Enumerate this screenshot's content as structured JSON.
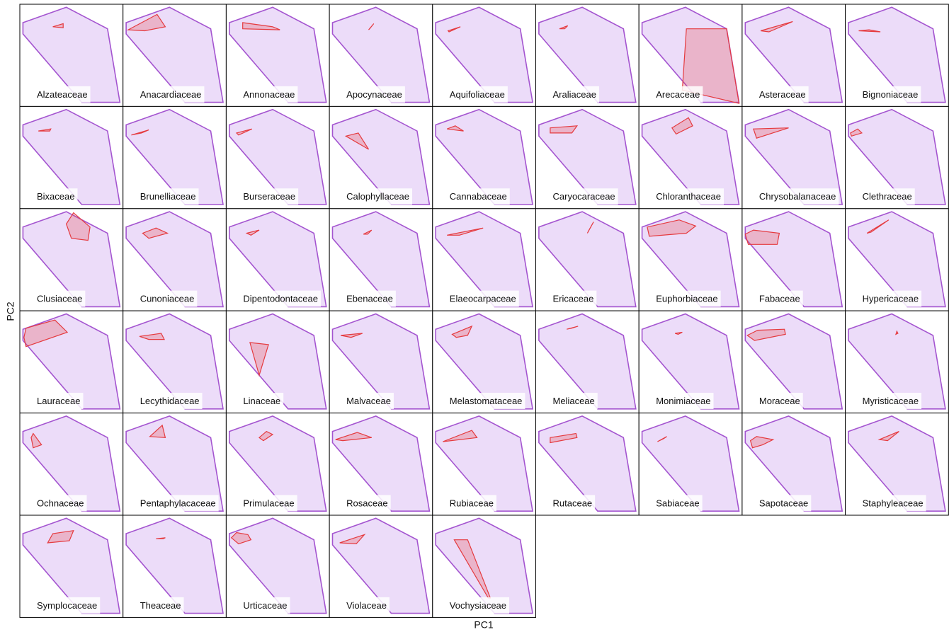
{
  "chart_data": {
    "type": "polygon",
    "xlabel": "PC1",
    "ylabel": "PC2",
    "xlim": [
      0,
      1
    ],
    "ylim": [
      0,
      1
    ],
    "envelope": {
      "color": "#a455d0",
      "x": [
        0.03,
        0.45,
        0.85,
        0.97,
        0.6,
        0.03
      ],
      "y": [
        0.82,
        0.97,
        0.76,
        0.04,
        0.04,
        0.71
      ]
    },
    "color": "#e53a3f",
    "panels": [
      {
        "name": "Alzateaceae",
        "x": [
          0.32,
          0.42,
          0.42
        ],
        "y": [
          0.78,
          0.81,
          0.77
        ]
      },
      {
        "name": "Anacardiaceae",
        "x": [
          0.05,
          0.33,
          0.41,
          0.21
        ],
        "y": [
          0.75,
          0.9,
          0.78,
          0.74
        ]
      },
      {
        "name": "Annonaceae",
        "x": [
          0.16,
          0.16,
          0.52,
          0.45
        ],
        "y": [
          0.82,
          0.76,
          0.75,
          0.78
        ]
      },
      {
        "name": "Apocynaceae",
        "x": [
          0.38,
          0.43,
          0.39
        ],
        "y": [
          0.75,
          0.81,
          0.76
        ]
      },
      {
        "name": "Aquifoliaceae",
        "x": [
          0.15,
          0.27,
          0.16
        ],
        "y": [
          0.74,
          0.78,
          0.73
        ]
      },
      {
        "name": "Araliaceae",
        "x": [
          0.23,
          0.31,
          0.28
        ],
        "y": [
          0.76,
          0.79,
          0.76
        ]
      },
      {
        "name": "Arecaceae",
        "x": [
          0.46,
          0.85,
          0.97,
          0.42
        ],
        "y": [
          0.76,
          0.76,
          0.03,
          0.16
        ]
      },
      {
        "name": "Asteraceae",
        "x": [
          0.18,
          0.49,
          0.26
        ],
        "y": [
          0.74,
          0.83,
          0.73
        ]
      },
      {
        "name": "Bignoniaceae",
        "x": [
          0.13,
          0.34,
          0.23
        ],
        "y": [
          0.74,
          0.73,
          0.75
        ]
      },
      {
        "name": "Bixaceae",
        "x": [
          0.18,
          0.3,
          0.29
        ],
        "y": [
          0.76,
          0.78,
          0.76
        ]
      },
      {
        "name": "Brunelliaceae",
        "x": [
          0.08,
          0.25,
          0.18
        ],
        "y": [
          0.72,
          0.77,
          0.74
        ]
      },
      {
        "name": "Burseraceae",
        "x": [
          0.1,
          0.25,
          0.12
        ],
        "y": [
          0.74,
          0.78,
          0.72
        ]
      },
      {
        "name": "Calophyllaceae",
        "x": [
          0.16,
          0.28,
          0.38
        ],
        "y": [
          0.71,
          0.74,
          0.58
        ]
      },
      {
        "name": "Cannabaceae",
        "x": [
          0.14,
          0.22,
          0.3
        ],
        "y": [
          0.78,
          0.81,
          0.76
        ]
      },
      {
        "name": "Caryocaraceae",
        "x": [
          0.14,
          0.4,
          0.35,
          0.14
        ],
        "y": [
          0.79,
          0.81,
          0.74,
          0.74
        ]
      },
      {
        "name": "Chloranthaceae",
        "x": [
          0.32,
          0.48,
          0.52,
          0.36
        ],
        "y": [
          0.79,
          0.89,
          0.81,
          0.73
        ]
      },
      {
        "name": "Chrysobalanaceae",
        "x": [
          0.11,
          0.45,
          0.14
        ],
        "y": [
          0.78,
          0.79,
          0.69
        ]
      },
      {
        "name": "Clethraceae",
        "x": [
          0.05,
          0.12,
          0.16,
          0.06
        ],
        "y": [
          0.74,
          0.78,
          0.74,
          0.71
        ]
      },
      {
        "name": "Clusiaceae",
        "x": [
          0.45,
          0.52,
          0.68,
          0.66,
          0.5
        ],
        "y": [
          0.85,
          0.96,
          0.82,
          0.69,
          0.71
        ]
      },
      {
        "name": "Cunoniaceae",
        "x": [
          0.19,
          0.32,
          0.43,
          0.25
        ],
        "y": [
          0.76,
          0.81,
          0.76,
          0.71
        ]
      },
      {
        "name": "Dipentodontaceae",
        "x": [
          0.2,
          0.32,
          0.24
        ],
        "y": [
          0.76,
          0.79,
          0.74
        ]
      },
      {
        "name": "Ebenaceae",
        "x": [
          0.33,
          0.41,
          0.37
        ],
        "y": [
          0.75,
          0.79,
          0.75
        ]
      },
      {
        "name": "Elaeocarpaceae",
        "x": [
          0.14,
          0.49,
          0.26
        ],
        "y": [
          0.74,
          0.81,
          0.74
        ]
      },
      {
        "name": "Ericaceae",
        "x": [
          0.5,
          0.56,
          0.51
        ],
        "y": [
          0.76,
          0.87,
          0.78
        ]
      },
      {
        "name": "Euphorbiaceae",
        "x": [
          0.08,
          0.39,
          0.55,
          0.46,
          0.1
        ],
        "y": [
          0.82,
          0.89,
          0.83,
          0.76,
          0.73
        ]
      },
      {
        "name": "Fabaceae",
        "x": [
          0.03,
          0.11,
          0.36,
          0.34,
          0.06
        ],
        "y": [
          0.75,
          0.79,
          0.76,
          0.65,
          0.65
        ]
      },
      {
        "name": "Hypericaceae",
        "x": [
          0.21,
          0.42,
          0.25
        ],
        "y": [
          0.76,
          0.89,
          0.77
        ]
      },
      {
        "name": "Lauraceae",
        "x": [
          0.04,
          0.06,
          0.34,
          0.46,
          0.06
        ],
        "y": [
          0.74,
          0.83,
          0.91,
          0.79,
          0.65
        ]
      },
      {
        "name": "Lecythidaceae",
        "x": [
          0.16,
          0.37,
          0.4,
          0.25
        ],
        "y": [
          0.75,
          0.78,
          0.72,
          0.72
        ]
      },
      {
        "name": "Linaceae",
        "x": [
          0.23,
          0.41,
          0.32
        ],
        "y": [
          0.69,
          0.67,
          0.37
        ]
      },
      {
        "name": "Malvaceae",
        "x": [
          0.11,
          0.32,
          0.21
        ],
        "y": [
          0.76,
          0.78,
          0.74
        ]
      },
      {
        "name": "Melastomataceae",
        "x": [
          0.19,
          0.38,
          0.34,
          0.23
        ],
        "y": [
          0.77,
          0.85,
          0.76,
          0.74
        ]
      },
      {
        "name": "Meliaceae",
        "x": [
          0.3,
          0.41,
          0.35
        ],
        "y": [
          0.82,
          0.85,
          0.83
        ]
      },
      {
        "name": "Monimiaceae",
        "x": [
          0.35,
          0.42,
          0.38
        ],
        "y": [
          0.78,
          0.79,
          0.77
        ]
      },
      {
        "name": "Moraceae",
        "x": [
          0.05,
          0.15,
          0.41,
          0.42,
          0.12
        ],
        "y": [
          0.76,
          0.81,
          0.82,
          0.77,
          0.71
        ]
      },
      {
        "name": "Myristicaceae",
        "x": [
          0.5,
          0.51,
          0.49
        ],
        "y": [
          0.8,
          0.78,
          0.77
        ]
      },
      {
        "name": "Ochnaceae",
        "x": [
          0.11,
          0.13,
          0.21,
          0.13
        ],
        "y": [
          0.76,
          0.8,
          0.69,
          0.66
        ]
      },
      {
        "name": "Pentaphylacaceae",
        "x": [
          0.26,
          0.38,
          0.41
        ],
        "y": [
          0.77,
          0.88,
          0.76
        ]
      },
      {
        "name": "Primulaceae",
        "x": [
          0.32,
          0.39,
          0.45,
          0.36
        ],
        "y": [
          0.76,
          0.82,
          0.79,
          0.73
        ]
      },
      {
        "name": "Rosaceae",
        "x": [
          0.06,
          0.27,
          0.41,
          0.13
        ],
        "y": [
          0.74,
          0.81,
          0.76,
          0.73
        ]
      },
      {
        "name": "Rubiaceae",
        "x": [
          0.1,
          0.38,
          0.43
        ],
        "y": [
          0.72,
          0.83,
          0.76
        ]
      },
      {
        "name": "Rutaceae",
        "x": [
          0.14,
          0.39,
          0.4,
          0.14
        ],
        "y": [
          0.76,
          0.8,
          0.76,
          0.71
        ]
      },
      {
        "name": "Sabiaceae",
        "x": [
          0.18,
          0.27,
          0.24
        ],
        "y": [
          0.72,
          0.77,
          0.75
        ]
      },
      {
        "name": "Sapotaceae",
        "x": [
          0.08,
          0.14,
          0.3,
          0.2,
          0.1
        ],
        "y": [
          0.73,
          0.77,
          0.74,
          0.69,
          0.66
        ]
      },
      {
        "name": "Staphyleaceae",
        "x": [
          0.33,
          0.52,
          0.41
        ],
        "y": [
          0.74,
          0.82,
          0.73
        ]
      },
      {
        "name": "Symplocaceae",
        "x": [
          0.27,
          0.32,
          0.52,
          0.48
        ],
        "y": [
          0.73,
          0.82,
          0.85,
          0.75
        ]
      },
      {
        "name": "Theaceae",
        "x": [
          0.32,
          0.41,
          0.39
        ],
        "y": [
          0.77,
          0.78,
          0.77
        ]
      },
      {
        "name": "Urticaceae",
        "x": [
          0.05,
          0.1,
          0.21,
          0.24,
          0.12
        ],
        "y": [
          0.78,
          0.83,
          0.81,
          0.76,
          0.72
        ]
      },
      {
        "name": "Violaceae",
        "x": [
          0.1,
          0.34,
          0.26
        ],
        "y": [
          0.73,
          0.81,
          0.72
        ]
      },
      {
        "name": "Vochysiaceae",
        "x": [
          0.21,
          0.34,
          0.56,
          0.54
        ],
        "y": [
          0.76,
          0.76,
          0.19,
          0.19
        ]
      }
    ]
  }
}
